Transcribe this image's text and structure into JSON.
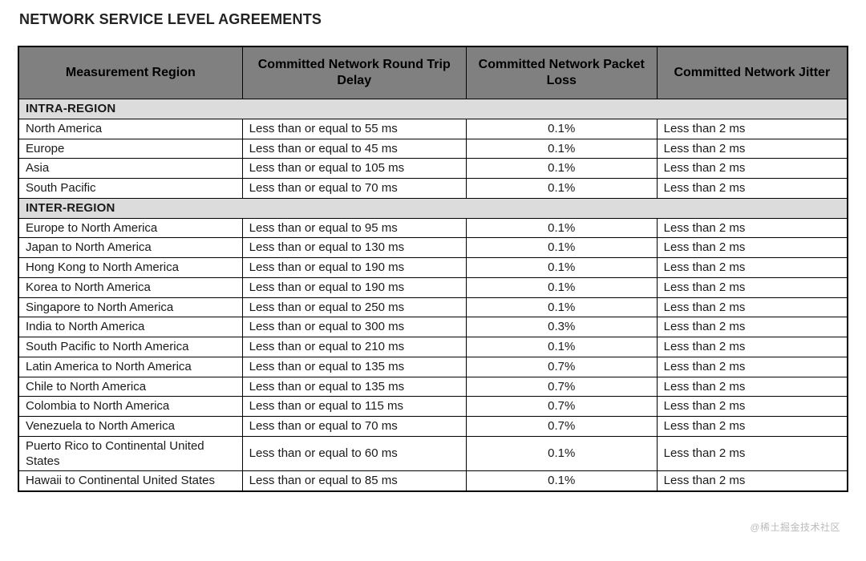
{
  "title": "NETWORK SERVICE LEVEL AGREEMENTS",
  "table": {
    "type": "table",
    "columns": [
      "Measurement Region",
      "Committed Network Round Trip Delay",
      "Committed Network Packet Loss",
      "Committed Network Jitter"
    ],
    "column_widths_pct": [
      27,
      27,
      23,
      23
    ],
    "header_bg": "#808080",
    "section_bg": "#dcdcdc",
    "border_color": "#000000",
    "background_color": "#ffffff",
    "text_color": "#1a1a1a",
    "header_fontsize": 16,
    "body_fontsize": 15,
    "sections": [
      {
        "label": "INTRA-REGION",
        "rows": [
          {
            "region": "North America",
            "delay": "Less than or equal to 55 ms",
            "loss": "0.1%",
            "jitter": "Less than 2 ms"
          },
          {
            "region": "Europe",
            "delay": "Less than or equal to 45 ms",
            "loss": "0.1%",
            "jitter": "Less than 2 ms"
          },
          {
            "region": "Asia",
            "delay": "Less than or equal to 105 ms",
            "loss": "0.1%",
            "jitter": "Less than 2 ms"
          },
          {
            "region": "South Pacific",
            "delay": "Less than or equal to 70 ms",
            "loss": "0.1%",
            "jitter": "Less than 2 ms"
          }
        ]
      },
      {
        "label": "INTER-REGION",
        "rows": [
          {
            "region": "Europe to North America",
            "delay": "Less than or equal to 95 ms",
            "loss": "0.1%",
            "jitter": "Less than 2 ms"
          },
          {
            "region": "Japan to North America",
            "delay": "Less than or equal to 130 ms",
            "loss": "0.1%",
            "jitter": "Less than 2 ms"
          },
          {
            "region": "Hong Kong to North America",
            "delay": "Less than or equal to 190 ms",
            "loss": "0.1%",
            "jitter": "Less than 2 ms"
          },
          {
            "region": "Korea to North America",
            "delay": "Less than or equal to 190 ms",
            "loss": "0.1%",
            "jitter": "Less than 2 ms"
          },
          {
            "region": "Singapore to North America",
            "delay": "Less than or equal to 250 ms",
            "loss": "0.1%",
            "jitter": "Less than 2 ms"
          },
          {
            "region": "India to North America",
            "delay": "Less than or equal to 300 ms",
            "loss": "0.3%",
            "jitter": "Less than 2 ms"
          },
          {
            "region": "South Pacific to North America",
            "delay": "Less than or equal to 210 ms",
            "loss": "0.1%",
            "jitter": "Less than 2 ms"
          },
          {
            "region": "Latin America to North America",
            "delay": "Less than or equal to 135 ms",
            "loss": "0.7%",
            "jitter": "Less than 2 ms"
          },
          {
            "region": "Chile to North America",
            "delay": "Less than or equal to 135 ms",
            "loss": "0.7%",
            "jitter": "Less than 2 ms"
          },
          {
            "region": "Colombia to North America",
            "delay": "Less than or equal to 115 ms",
            "loss": "0.7%",
            "jitter": "Less than 2 ms"
          },
          {
            "region": "Venezuela to North America",
            "delay": "Less than or equal to 70 ms",
            "loss": "0.7%",
            "jitter": "Less than 2 ms"
          },
          {
            "region": "Puerto Rico to Continental United States",
            "delay": "Less than or equal to 60 ms",
            "loss": "0.1%",
            "jitter": "Less than 2 ms"
          },
          {
            "region": "Hawaii to Continental United States",
            "delay": "Less than or equal to 85 ms",
            "loss": "0.1%",
            "jitter": "Less than 2 ms"
          }
        ]
      }
    ]
  },
  "watermark": "@稀土掘金技术社区"
}
